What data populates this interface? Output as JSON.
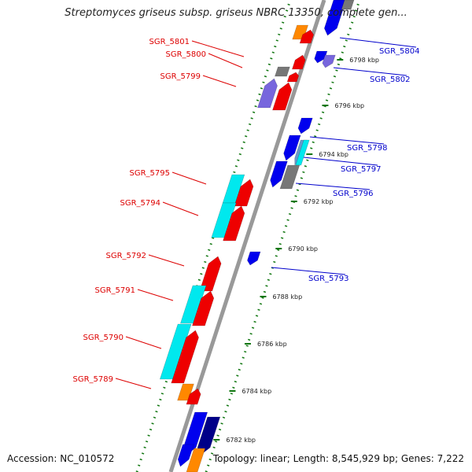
{
  "title": "Streptomyces griseus subsp. griseus NBRC 13350, complete gen...",
  "accession": "Accession: NC_010572",
  "summary": "Topology: linear; Length: 8,545,929 bp; Genes: 7,222",
  "colors": {
    "forward_label": "#dd0000",
    "reverse_label": "#0000cc",
    "tick": "#117711",
    "backbone": "#999999"
  },
  "scale_ticks": [
    "6798 kbp",
    "6796 kbp",
    "6794 kbp",
    "6792 kbp",
    "6790 kbp",
    "6788 kbp",
    "6786 kbp",
    "6784 kbp",
    "6782 kbp"
  ],
  "genes_left": [
    "SGR_5801",
    "SGR_5800",
    "SGR_5799",
    "SGR_5795",
    "SGR_5794",
    "SGR_5792",
    "SGR_5791",
    "SGR_5790",
    "SGR_5789"
  ],
  "genes_right": [
    "SGR_5804",
    "SGR_5802",
    "SGR_5798",
    "SGR_5797",
    "SGR_5796",
    "SGR_5793"
  ]
}
